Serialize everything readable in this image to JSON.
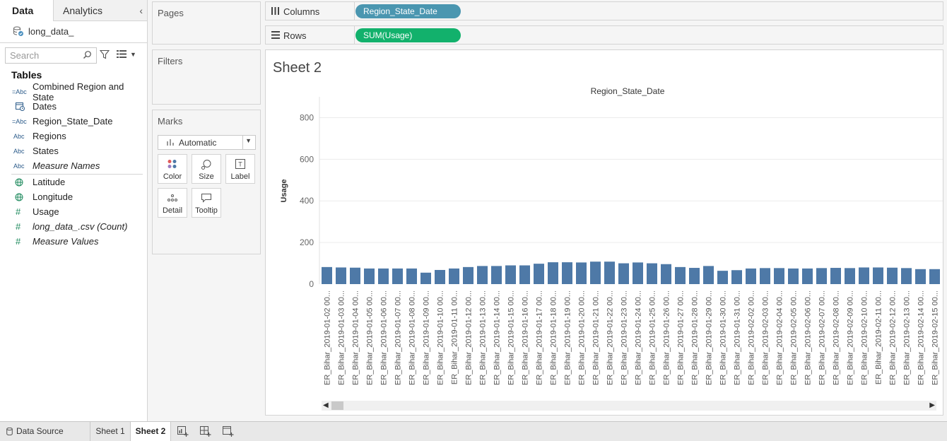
{
  "data_pane": {
    "tabs": [
      "Data",
      "Analytics"
    ],
    "datasource": "long_data_",
    "search_placeholder": "Search",
    "tables_title": "Tables",
    "fields": [
      {
        "label": "Combined Region and State",
        "type": "calc-abc"
      },
      {
        "label": "Dates",
        "type": "date"
      },
      {
        "label": "Region_State_Date",
        "type": "calc-abc"
      },
      {
        "label": "Regions",
        "type": "abc"
      },
      {
        "label": "States",
        "type": "abc"
      },
      {
        "label": "Measure Names",
        "type": "abc-italic"
      },
      {
        "label": "Latitude",
        "type": "geo"
      },
      {
        "label": "Longitude",
        "type": "geo"
      },
      {
        "label": "Usage",
        "type": "number"
      },
      {
        "label": "long_data_.csv (Count)",
        "type": "number-italic"
      },
      {
        "label": "Measure Values",
        "type": "number-italic"
      }
    ]
  },
  "cards": {
    "pages": "Pages",
    "filters": "Filters",
    "marks": "Marks",
    "mark_type": "Automatic",
    "mark_buttons": [
      "Color",
      "Size",
      "Label",
      "Detail",
      "Tooltip"
    ]
  },
  "shelves": {
    "columns_label": "Columns",
    "columns_pill": "Region_State_Date",
    "rows_label": "Rows",
    "rows_pill": "SUM(Usage)"
  },
  "sheet_title": "Sheet 2",
  "colors": {
    "bar": "#4e79a7",
    "columns_pill": "#4a96b0",
    "rows_pill": "#12b16c"
  },
  "chart_data": {
    "type": "bar",
    "title": "Region_State_Date",
    "xlabel": "",
    "ylabel": "Usage",
    "ylim": [
      0,
      900
    ],
    "yticks": [
      0,
      200,
      400,
      600,
      800
    ],
    "grid": true,
    "categories": [
      "ER_Bihar_2019-01-02 00...",
      "ER_Bihar_2019-01-03 00...",
      "ER_Bihar_2019-01-04 00...",
      "ER_Bihar_2019-01-05 00...",
      "ER_Bihar_2019-01-06 00...",
      "ER_Bihar_2019-01-07 00...",
      "ER_Bihar_2019-01-08 00...",
      "ER_Bihar_2019-01-09 00...",
      "ER_Bihar_2019-01-10 00...",
      "ER_Bihar_2019-01-11 00...",
      "ER_Bihar_2019-01-12 00...",
      "ER_Bihar_2019-01-13 00...",
      "ER_Bihar_2019-01-14 00...",
      "ER_Bihar_2019-01-15 00...",
      "ER_Bihar_2019-01-16 00...",
      "ER_Bihar_2019-01-17 00...",
      "ER_Bihar_2019-01-18 00...",
      "ER_Bihar_2019-01-19 00...",
      "ER_Bihar_2019-01-20 00...",
      "ER_Bihar_2019-01-21 00...",
      "ER_Bihar_2019-01-22 00...",
      "ER_Bihar_2019-01-23 00...",
      "ER_Bihar_2019-01-24 00...",
      "ER_Bihar_2019-01-25 00...",
      "ER_Bihar_2019-01-26 00...",
      "ER_Bihar_2019-01-27 00...",
      "ER_Bihar_2019-01-28 00...",
      "ER_Bihar_2019-01-29 00...",
      "ER_Bihar_2019-01-30 00...",
      "ER_Bihar_2019-01-31 00...",
      "ER_Bihar_2019-02-02 00...",
      "ER_Bihar_2019-02-03 00...",
      "ER_Bihar_2019-02-04 00...",
      "ER_Bihar_2019-02-05 00...",
      "ER_Bihar_2019-02-06 00...",
      "ER_Bihar_2019-02-07 00...",
      "ER_Bihar_2019-02-08 00...",
      "ER_Bihar_2019-02-09 00...",
      "ER_Bihar_2019-02-10 00...",
      "ER_Bihar_2019-02-11 00...",
      "ER_Bihar_2019-02-12 00...",
      "ER_Bihar_2019-02-13 00...",
      "ER_Bihar_2019-02-14 00...",
      "ER_Bihar_2019-02-15 00..."
    ],
    "values": [
      82,
      80,
      79,
      75,
      75,
      75,
      75,
      55,
      68,
      75,
      82,
      87,
      87,
      90,
      90,
      98,
      105,
      105,
      104,
      108,
      108,
      100,
      104,
      100,
      96,
      82,
      78,
      87,
      64,
      67,
      75,
      77,
      77,
      75,
      75,
      77,
      78,
      77,
      80,
      80,
      79,
      77,
      72,
      72
    ]
  },
  "bottom_tabs": {
    "datasource": "Data Source",
    "sheet1": "Sheet 1",
    "sheet2": "Sheet 2"
  }
}
